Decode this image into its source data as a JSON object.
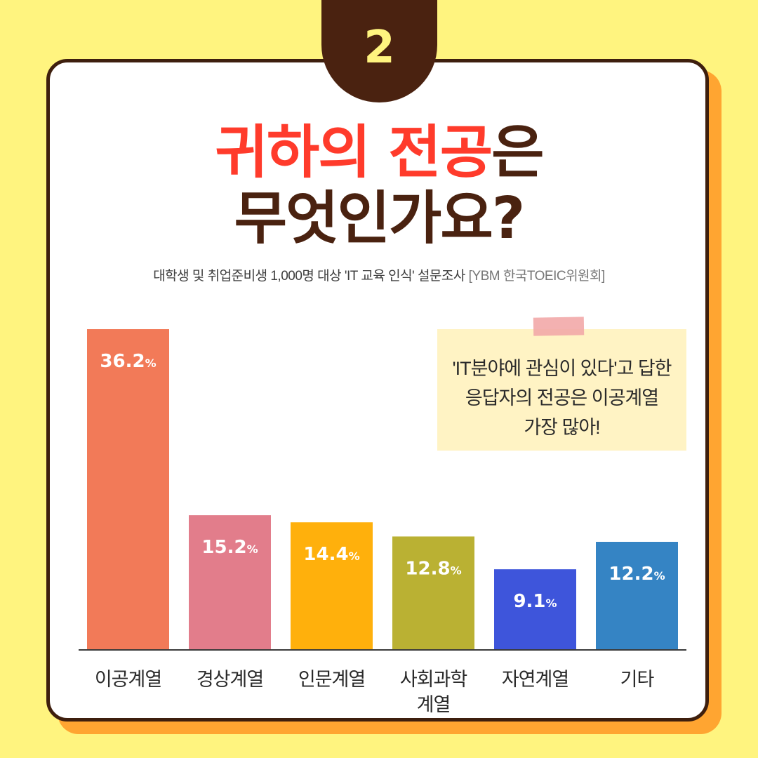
{
  "badge": "2",
  "title": {
    "line1_red": "귀하의 전공",
    "line1_brown": "은",
    "line2": "무엇인가요?"
  },
  "subtitle": {
    "text": "대학생 및 취업준비생 1,000명 대상 'IT 교육 인식' 설문조사",
    "source": "[YBM 한국TOEIC위원회]"
  },
  "note": {
    "lines": [
      "'IT분야에 관심이 있다'고 답한",
      "응답자의 전공은 이공계열",
      "가장 많아!"
    ]
  },
  "colors": {
    "background": "#FFF47F",
    "card_shadow": "#FFA531",
    "badge": "#4A2210",
    "title_red": "#FF3B2B",
    "title_brown": "#4A2210"
  },
  "chart_data": {
    "type": "bar",
    "categories": [
      "이공계열",
      "경상계열",
      "인문계열",
      "사회과학\n계열",
      "자연계열",
      "기타"
    ],
    "values": [
      36.2,
      15.2,
      14.4,
      12.8,
      9.1,
      12.2
    ],
    "value_suffix": "%",
    "bar_colors": [
      "#F27A58",
      "#E27D8B",
      "#FFB00C",
      "#BAB133",
      "#3E55DB",
      "#3584C4"
    ],
    "ylim": [
      0,
      36.2
    ],
    "grid": false,
    "legend": "none"
  }
}
